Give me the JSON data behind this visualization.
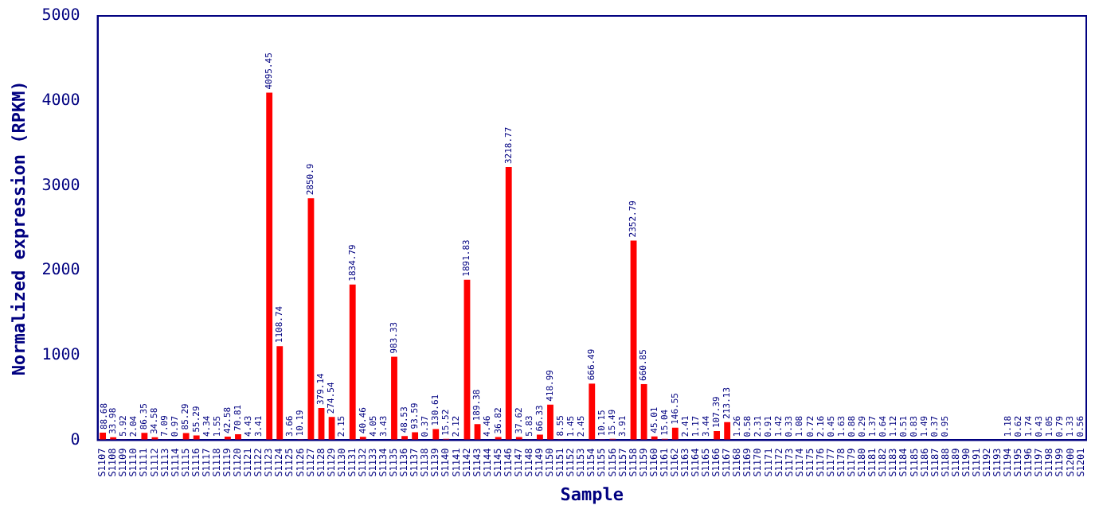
{
  "chart_data": {
    "type": "bar",
    "xlabel": "Sample",
    "ylabel": "Normalized expression (RPKM)",
    "categories": [
      "S1107",
      "S1108",
      "S1109",
      "S1110",
      "S1111",
      "S1112",
      "S1113",
      "S1114",
      "S1115",
      "S1116",
      "S1117",
      "S1118",
      "S1119",
      "S1120",
      "S1121",
      "S1122",
      "S1123",
      "S1124",
      "S1125",
      "S1126",
      "S1127",
      "S1128",
      "S1129",
      "S1130",
      "S1131",
      "S1132",
      "S1133",
      "S1134",
      "S1135",
      "S1136",
      "S1137",
      "S1138",
      "S1139",
      "S1140",
      "S1141",
      "S1142",
      "S1143",
      "S1144",
      "S1145",
      "S1146",
      "S1147",
      "S1148",
      "S1149",
      "S1150",
      "S1151",
      "S1152",
      "S1153",
      "S1154",
      "S1155",
      "S1156",
      "S1157",
      "S1158",
      "S1159",
      "S1160",
      "S1161",
      "S1162",
      "S1163",
      "S1164",
      "S1165",
      "S1166",
      "S1167",
      "S1168",
      "S1169",
      "S1170",
      "S1171",
      "S1172",
      "S1173",
      "S1174",
      "S1175",
      "S1176",
      "S1177",
      "S1178",
      "S1179",
      "S1180",
      "S1181",
      "S1182",
      "S1183",
      "S1184",
      "S1185",
      "S1186",
      "S1187",
      "S1188",
      "S1189",
      "S1190",
      "S1191",
      "S1192",
      "S1193",
      "S1194",
      "S1195",
      "S1196",
      "S1197",
      "S1198",
      "S1199",
      "S1200",
      "S1201"
    ],
    "values": [
      88.68,
      33.98,
      5.92,
      2.04,
      86.35,
      34.58,
      7.09,
      0.97,
      85.29,
      55.29,
      4.34,
      1.55,
      42.58,
      70.81,
      4.43,
      3.41,
      4095.45,
      1108.74,
      3.66,
      10.19,
      2850.9,
      379.14,
      274.54,
      2.15,
      1834.79,
      40.46,
      4.05,
      3.43,
      983.33,
      48.53,
      93.59,
      0.37,
      130.61,
      15.52,
      2.12,
      1891.83,
      189.38,
      4.46,
      36.82,
      3218.77,
      37.62,
      5.83,
      66.33,
      418.99,
      8.55,
      1.45,
      2.45,
      666.49,
      10.15,
      15.49,
      3.91,
      2352.79,
      660.85,
      45.01,
      15.04,
      146.55,
      2.41,
      1.17,
      3.44,
      107.39,
      213.13,
      1.26,
      0.58,
      2.31,
      0.91,
      1.42,
      0.33,
      1.08,
      0.72,
      2.16,
      0.45,
      1.63,
      0.88,
      0.29,
      1.37,
      0.64,
      1.12,
      0.51,
      0.83,
      1.49,
      0.37,
      0.95,
      null,
      null,
      null,
      null,
      null,
      1.18,
      0.62,
      1.74,
      0.43,
      1.05,
      0.79,
      1.33,
      0.56
    ],
    "color": "#ff0000",
    "ylim": [
      0,
      5000
    ],
    "yticks": [
      0,
      1000,
      2000,
      3000,
      4000,
      5000
    ],
    "grid": false,
    "legend": false,
    "data_labels": true
  }
}
